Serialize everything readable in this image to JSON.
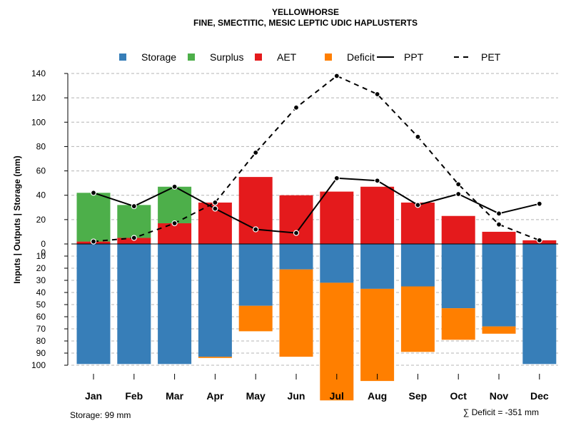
{
  "chart_data": {
    "type": "bar",
    "title": "YELLOWHORSE",
    "subtitle": "FINE, SMECTITIC, MESIC LEPTIC UDIC HAPLUSTERTS",
    "ylabel": "Inputs | Outputs | Storage    (mm)",
    "categories": [
      "Jan",
      "Feb",
      "Mar",
      "Apr",
      "May",
      "Jun",
      "Jul",
      "Aug",
      "Sep",
      "Oct",
      "Nov",
      "Dec"
    ],
    "upper_axis": {
      "ylim": [
        0,
        140
      ],
      "ticks": [
        "0",
        "20",
        "40",
        "60",
        "80",
        "100",
        "120",
        "140"
      ]
    },
    "lower_axis": {
      "ylim": [
        0,
        100
      ],
      "ticks": [
        "0",
        "10",
        "20",
        "30",
        "40",
        "50",
        "60",
        "70",
        "80",
        "90",
        "100"
      ]
    },
    "legend": [
      {
        "key": "storage",
        "label": "Storage",
        "kind": "square",
        "color": "#377eb8"
      },
      {
        "key": "surplus",
        "label": "Surplus",
        "kind": "square",
        "color": "#4daf4a"
      },
      {
        "key": "aet",
        "label": "AET",
        "kind": "square",
        "color": "#e41a1c"
      },
      {
        "key": "deficit",
        "label": "Deficit",
        "kind": "square",
        "color": "#ff7f00"
      },
      {
        "key": "ppt",
        "label": "PPT",
        "kind": "solid-line",
        "color": "#000000"
      },
      {
        "key": "pet",
        "label": "PET",
        "kind": "dashed-line",
        "color": "#000000"
      }
    ],
    "series": [
      {
        "name": "AET",
        "color": "#e41a1c",
        "values": [
          2,
          5,
          17,
          34,
          55,
          40,
          43,
          47,
          34,
          23,
          10,
          3
        ]
      },
      {
        "name": "Surplus",
        "color": "#4daf4a",
        "values": [
          40,
          27,
          30,
          0,
          0,
          0,
          0,
          0,
          0,
          0,
          0,
          0
        ]
      },
      {
        "name": "Storage",
        "color": "#377eb8",
        "values": [
          99,
          99,
          99,
          93,
          51,
          21,
          32,
          37,
          35,
          53,
          68,
          99
        ]
      },
      {
        "name": "Deficit",
        "color": "#ff7f00",
        "values": [
          0,
          0,
          0,
          1,
          21,
          72,
          97,
          76,
          54,
          26,
          6,
          0
        ]
      },
      {
        "name": "PPT",
        "color": "#000000",
        "style": "solid",
        "values": [
          42,
          31,
          47,
          29,
          12,
          9,
          54,
          52,
          32,
          41,
          25,
          33
        ]
      },
      {
        "name": "PET",
        "color": "#000000",
        "style": "dashed",
        "values": [
          2,
          5,
          17,
          34,
          75,
          112,
          138,
          123,
          88,
          49,
          16,
          3
        ]
      }
    ],
    "storage_note": "Storage: 99 mm",
    "deficit_note": "∑ Deficit = -351 mm"
  }
}
